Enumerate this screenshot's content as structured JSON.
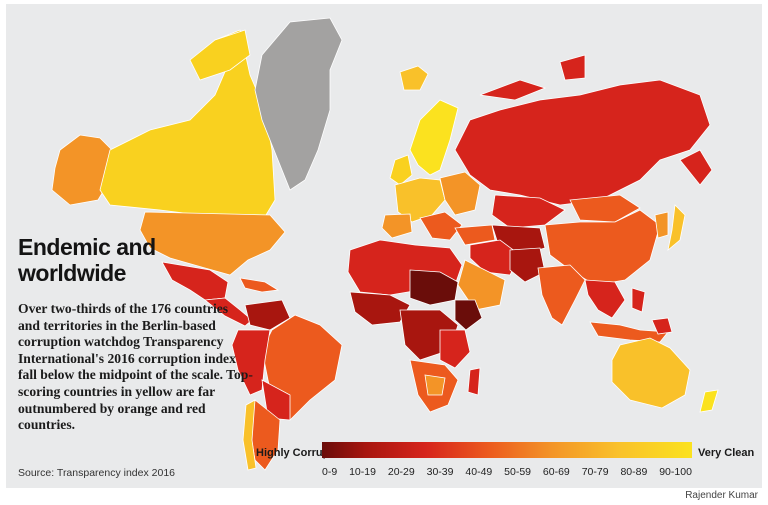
{
  "headline": "Endemic and worldwide",
  "body": "Over two-thirds of the 176 countries and territories in the Berlin-based corruption watchdog Transparency International's 2016 corruption index fall below the midpoint of the scale. Top-scoring countries in yellow are far outnumbered by orange and red countries.",
  "source": "Source: Transparency index 2016",
  "credit": "Rajender Kumar",
  "legend": {
    "low_label": "Highly Corrupt",
    "high_label": "Very Clean",
    "ticks": [
      "0-9",
      "10-19",
      "20-29",
      "30-39",
      "40-49",
      "50-59",
      "60-69",
      "70-79",
      "80-89",
      "90-100"
    ]
  },
  "colors": {
    "background": "#e9eaeb",
    "no_data": "#a3a2a1",
    "score_0_9": "#6a0d0a",
    "score_10_19": "#a8160f",
    "score_20_29": "#d6241c",
    "score_30_39": "#ec5a1e",
    "score_40_49": "#f39427",
    "score_50_59": "#f6a92a",
    "score_60_69": "#f9c12a",
    "score_70_79": "#f6b827",
    "score_80_89": "#f9d11f",
    "score_90_100": "#fbe21f"
  }
}
